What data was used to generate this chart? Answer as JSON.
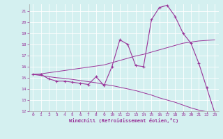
{
  "xlabel": "Windchill (Refroidissement éolien,°C)",
  "background_color": "#d4f0f0",
  "line_color": "#993399",
  "x_values": [
    0,
    1,
    2,
    3,
    4,
    5,
    6,
    7,
    8,
    9,
    10,
    11,
    12,
    13,
    14,
    15,
    16,
    17,
    18,
    19,
    20,
    21,
    22,
    23
  ],
  "temp_line": [
    15.3,
    15.3,
    14.9,
    14.7,
    14.7,
    14.6,
    14.5,
    14.4,
    15.1,
    14.3,
    16.0,
    18.4,
    18.0,
    16.1,
    16.0,
    20.2,
    21.3,
    21.5,
    20.5,
    19.0,
    18.1,
    16.3,
    14.1,
    11.9
  ],
  "line2": [
    15.3,
    15.35,
    15.45,
    15.55,
    15.65,
    15.75,
    15.85,
    15.95,
    16.05,
    16.15,
    16.35,
    16.55,
    16.75,
    16.95,
    17.1,
    17.3,
    17.5,
    17.7,
    17.9,
    18.1,
    18.2,
    18.3,
    18.35,
    18.4
  ],
  "line3": [
    15.3,
    15.2,
    15.1,
    15.0,
    14.95,
    14.85,
    14.75,
    14.65,
    14.55,
    14.4,
    14.3,
    14.15,
    14.0,
    13.85,
    13.65,
    13.45,
    13.2,
    13.0,
    12.8,
    12.55,
    12.3,
    12.1,
    11.95,
    11.85
  ],
  "ylim": [
    12,
    21.6
  ],
  "xlim": [
    -0.5,
    23.5
  ],
  "yticks": [
    12,
    13,
    14,
    15,
    16,
    17,
    18,
    19,
    20,
    21
  ],
  "xticks": [
    0,
    1,
    2,
    3,
    4,
    5,
    6,
    7,
    8,
    9,
    10,
    11,
    12,
    13,
    14,
    15,
    16,
    17,
    18,
    19,
    20,
    21,
    22,
    23
  ]
}
